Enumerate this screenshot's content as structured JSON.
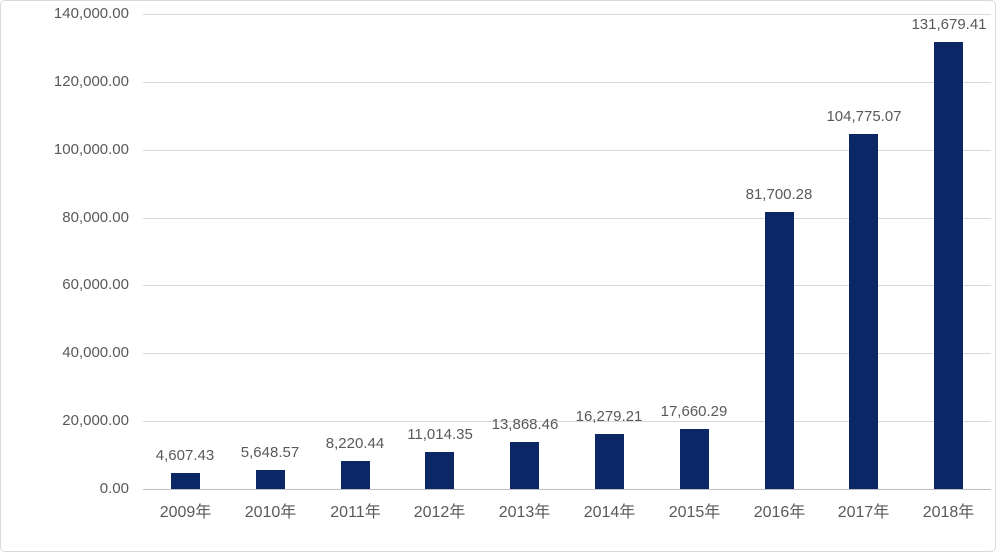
{
  "chart_data": {
    "type": "bar",
    "title": "",
    "xlabel": "",
    "ylabel": "",
    "categories": [
      "2009年",
      "2010年",
      "2011年",
      "2012年",
      "2013年",
      "2014年",
      "2015年",
      "2016年",
      "2017年",
      "2018年"
    ],
    "values": [
      4607.43,
      5648.57,
      8220.44,
      11014.35,
      13868.46,
      16279.21,
      17660.29,
      81700.28,
      104775.07,
      131679.41
    ],
    "data_labels": [
      "4,607.43",
      "5,648.57",
      "8,220.44",
      "11,014.35",
      "13,868.46",
      "16,279.21",
      "17,660.29",
      "81,700.28",
      "104,775.07",
      "131,679.41"
    ],
    "y_tick_labels": [
      "0.00",
      "20,000.00",
      "40,000.00",
      "60,000.00",
      "80,000.00",
      "100,000.00",
      "120,000.00",
      "140,000.00"
    ],
    "ylim": [
      0,
      140000
    ],
    "ytick_step": 20000,
    "grid": true,
    "legend": false,
    "colors": {
      "bar": "#0c2766",
      "gridline": "#d9d9d9",
      "axis_line": "#bfbfbf",
      "tick_label": "#595959",
      "data_label": "#595959",
      "chart_border": "#d9d9d9",
      "background": "#ffffff"
    }
  }
}
